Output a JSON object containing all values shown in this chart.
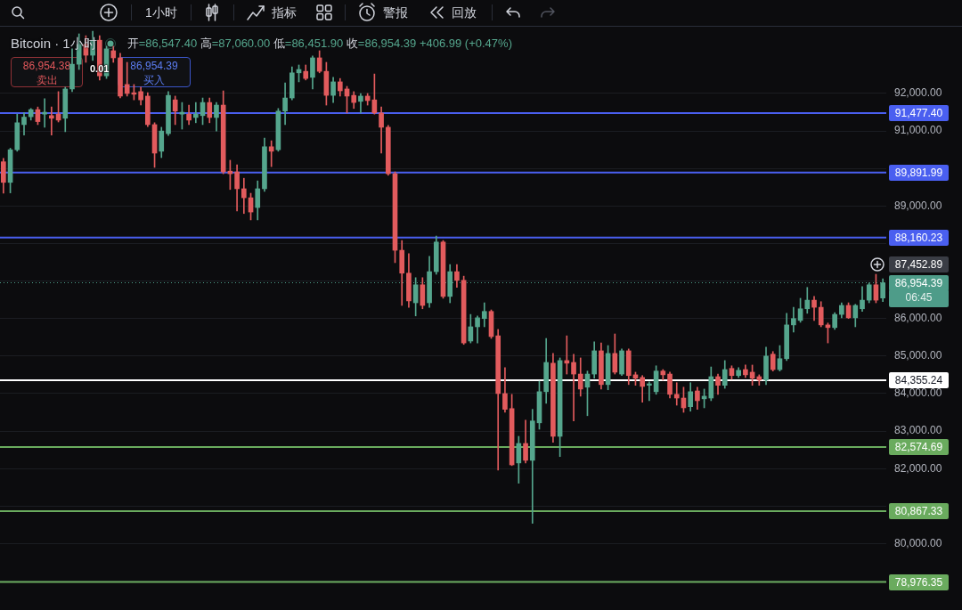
{
  "chart_data": {
    "type": "candlestick",
    "title": "Bitcoin · 1小时",
    "subtitle": "开=86,547.40 高=87,060.00 低=86,451.90 收=86,954.39 +406.99 (+0.47%)",
    "categories": [
      null,
      null,
      null,
      null,
      null,
      null,
      null,
      null,
      null,
      null,
      null,
      null,
      null,
      null,
      null,
      null,
      null,
      null,
      null,
      null,
      null,
      null,
      null,
      null,
      null,
      null,
      null,
      null,
      null,
      null,
      null,
      null,
      null,
      null,
      null,
      null,
      null,
      null,
      null,
      null,
      null,
      null,
      null,
      null,
      null,
      null,
      null,
      null,
      null,
      null,
      null,
      null,
      null,
      null,
      null,
      null,
      null,
      null,
      null,
      null,
      null,
      null,
      null,
      null,
      null,
      null,
      null,
      null,
      null,
      null,
      null,
      null,
      null,
      null,
      null,
      null,
      null,
      null,
      null,
      null,
      null,
      null,
      null,
      null,
      null,
      null,
      null,
      null,
      null,
      null,
      null,
      null,
      null,
      null,
      null,
      null,
      null,
      null,
      null,
      null,
      null,
      null,
      null,
      null,
      null,
      null,
      null,
      null,
      null,
      null,
      null,
      null,
      null,
      null,
      null,
      null,
      null,
      null,
      null,
      null,
      null,
      null,
      null,
      null,
      null,
      null,
      null,
      null,
      null
    ],
    "ohlc": [
      [
        90180,
        90270,
        89340,
        89630
      ],
      [
        89630,
        90540,
        89350,
        90500
      ],
      [
        90500,
        91450,
        90460,
        91220
      ],
      [
        91170,
        91490,
        90890,
        91370
      ],
      [
        91380,
        91600,
        91290,
        91570
      ],
      [
        91570,
        91640,
        91170,
        91250
      ],
      [
        91450,
        91860,
        91100,
        91500
      ],
      [
        91410,
        91640,
        90890,
        91340
      ],
      [
        91450,
        92050,
        91240,
        91290
      ],
      [
        91340,
        92170,
        90980,
        92120
      ],
      [
        92120,
        93190,
        92050,
        92780
      ],
      [
        92780,
        93590,
        92640,
        93310
      ],
      [
        93310,
        93540,
        92830,
        93020
      ],
      [
        93020,
        93660,
        92880,
        93420
      ],
      [
        93420,
        93540,
        92360,
        92470
      ],
      [
        92470,
        93260,
        92400,
        93190
      ],
      [
        93140,
        93260,
        92830,
        92950
      ],
      [
        92950,
        93070,
        91880,
        91930
      ],
      [
        92240,
        92830,
        91930,
        92000
      ],
      [
        92020,
        92240,
        91830,
        91980
      ],
      [
        92050,
        92170,
        91690,
        91830
      ],
      [
        91930,
        92020,
        91120,
        91170
      ],
      [
        91170,
        91220,
        90030,
        90410
      ],
      [
        90460,
        91100,
        90290,
        91000
      ],
      [
        90930,
        92050,
        90880,
        91950
      ],
      [
        91830,
        91930,
        91170,
        91530
      ],
      [
        91450,
        91760,
        91050,
        91500
      ],
      [
        91450,
        91690,
        91170,
        91290
      ],
      [
        91360,
        91760,
        91220,
        91450
      ],
      [
        91410,
        91880,
        91170,
        91760
      ],
      [
        91760,
        91880,
        91220,
        91360
      ],
      [
        91360,
        91760,
        91000,
        91690
      ],
      [
        91690,
        92070,
        89860,
        89910
      ],
      [
        89930,
        90220,
        89440,
        89860
      ],
      [
        89910,
        90100,
        88870,
        89460
      ],
      [
        89460,
        89740,
        88800,
        89220
      ],
      [
        89220,
        89340,
        88630,
        88840
      ],
      [
        88960,
        89670,
        88630,
        89460
      ],
      [
        89460,
        90810,
        89390,
        90580
      ],
      [
        90580,
        90740,
        90050,
        90460
      ],
      [
        90500,
        91600,
        90460,
        91530
      ],
      [
        91530,
        92280,
        91170,
        91880
      ],
      [
        91880,
        92710,
        91830,
        92550
      ],
      [
        92550,
        92760,
        92310,
        92640
      ],
      [
        92590,
        92760,
        92360,
        92400
      ],
      [
        92430,
        93000,
        92120,
        92950
      ],
      [
        92950,
        93140,
        92550,
        92590
      ],
      [
        92590,
        92830,
        91690,
        91950
      ],
      [
        91950,
        92430,
        91760,
        92310
      ],
      [
        92310,
        92400,
        91930,
        92070
      ],
      [
        92120,
        92190,
        91480,
        91930
      ],
      [
        91950,
        92050,
        91600,
        91760
      ],
      [
        91790,
        92000,
        91480,
        91930
      ],
      [
        91930,
        92000,
        91690,
        91810
      ],
      [
        91830,
        92520,
        91450,
        91480
      ],
      [
        91480,
        91640,
        90410,
        91100
      ],
      [
        91100,
        91150,
        89820,
        89860
      ],
      [
        89860,
        89910,
        87490,
        87820
      ],
      [
        87820,
        88080,
        86350,
        87210
      ],
      [
        87210,
        87730,
        86300,
        86470
      ],
      [
        86420,
        87090,
        86070,
        86900
      ],
      [
        86900,
        87090,
        86260,
        86350
      ],
      [
        86420,
        87660,
        86300,
        87250
      ],
      [
        87250,
        88200,
        87180,
        88040
      ],
      [
        88040,
        88080,
        86540,
        86590
      ],
      [
        86590,
        87440,
        86420,
        87250
      ],
      [
        87250,
        87440,
        86830,
        87020
      ],
      [
        87020,
        87130,
        85310,
        85350
      ],
      [
        85400,
        86110,
        85350,
        85780
      ],
      [
        85780,
        86070,
        85350,
        86020
      ],
      [
        86000,
        86420,
        85780,
        86190
      ],
      [
        86190,
        86230,
        85470,
        85520
      ],
      [
        85540,
        85710,
        81960,
        84000
      ],
      [
        84000,
        84690,
        83500,
        83580
      ],
      [
        83600,
        83980,
        82080,
        82100
      ],
      [
        82150,
        82860,
        81610,
        82670
      ],
      [
        82670,
        83290,
        82150,
        82220
      ],
      [
        82220,
        83580,
        80540,
        83270
      ],
      [
        83220,
        84330,
        83050,
        84050
      ],
      [
        84050,
        85470,
        83740,
        84830
      ],
      [
        84810,
        85070,
        82700,
        82860
      ],
      [
        82860,
        84950,
        82320,
        84880
      ],
      [
        84880,
        85540,
        84520,
        84810
      ],
      [
        84830,
        85050,
        83270,
        84520
      ],
      [
        84520,
        84950,
        83930,
        84120
      ],
      [
        84170,
        84600,
        83410,
        84520
      ],
      [
        84520,
        85380,
        84410,
        85140
      ],
      [
        85140,
        85350,
        84120,
        84240
      ],
      [
        84240,
        85280,
        84100,
        85070
      ],
      [
        85070,
        85590,
        84520,
        84570
      ],
      [
        84520,
        85190,
        84480,
        85140
      ],
      [
        85140,
        85190,
        84240,
        84480
      ],
      [
        84500,
        84570,
        84220,
        84410
      ],
      [
        84430,
        84480,
        83770,
        84190
      ],
      [
        84220,
        84310,
        83810,
        84260
      ],
      [
        84050,
        84740,
        83980,
        84600
      ],
      [
        84600,
        84640,
        84360,
        84500
      ],
      [
        84520,
        84570,
        83880,
        83980
      ],
      [
        83980,
        84290,
        83690,
        83880
      ],
      [
        83880,
        84170,
        83500,
        83620
      ],
      [
        83650,
        84290,
        83530,
        84050
      ],
      [
        84070,
        84170,
        83580,
        83810
      ],
      [
        83860,
        84120,
        83620,
        83930
      ],
      [
        83880,
        84710,
        83810,
        84450
      ],
      [
        84450,
        84520,
        83980,
        84220
      ],
      [
        84220,
        84880,
        84140,
        84640
      ],
      [
        84670,
        84740,
        84380,
        84480
      ],
      [
        84480,
        84690,
        84430,
        84620
      ],
      [
        84640,
        84760,
        84430,
        84500
      ],
      [
        84570,
        84760,
        84220,
        84410
      ],
      [
        84450,
        84500,
        84220,
        84360
      ],
      [
        84360,
        85240,
        84240,
        85000
      ],
      [
        85050,
        85120,
        84600,
        84640
      ],
      [
        84640,
        85280,
        84600,
        84930
      ],
      [
        84930,
        86140,
        84880,
        85830
      ],
      [
        85830,
        86300,
        85640,
        86000
      ],
      [
        85950,
        86540,
        85900,
        86260
      ],
      [
        86260,
        86830,
        86140,
        86490
      ],
      [
        86490,
        86590,
        85950,
        86300
      ],
      [
        86300,
        86450,
        85780,
        85830
      ],
      [
        85830,
        85880,
        85350,
        85760
      ],
      [
        85760,
        86160,
        85710,
        86110
      ],
      [
        86110,
        86420,
        86020,
        86350
      ],
      [
        86350,
        86420,
        86000,
        86020
      ],
      [
        86020,
        86380,
        85780,
        86350
      ],
      [
        86260,
        86850,
        86190,
        86490
      ],
      [
        86490,
        86950,
        86420,
        86900
      ],
      [
        86900,
        87180,
        86420,
        86490
      ],
      [
        86547.4,
        87060.0,
        86451.9,
        86954.39
      ]
    ],
    "colors": [
      "#e25b5d",
      "#55a68d",
      "#55a68d",
      "#55a68d",
      "#55a68d",
      "#e25b5d",
      "#55a68d",
      "#e25b5d",
      "#e25b5d",
      "#55a68d",
      "#55a68d",
      "#55a68d",
      "#e25b5d",
      "#55a68d",
      "#e25b5d",
      "#55a68d",
      "#e25b5d",
      "#e25b5d",
      "#e25b5d",
      "#e25b5d",
      "#e25b5d",
      "#e25b5d",
      "#e25b5d",
      "#55a68d",
      "#55a68d",
      "#e25b5d",
      "#55a68d",
      "#e25b5d",
      "#55a68d",
      "#55a68d",
      "#e25b5d",
      "#55a68d",
      "#e25b5d",
      "#e25b5d",
      "#e25b5d",
      "#e25b5d",
      "#e25b5d",
      "#55a68d",
      "#55a68d",
      "#e25b5d",
      "#55a68d",
      "#55a68d",
      "#55a68d",
      "#55a68d",
      "#e25b5d",
      "#55a68d",
      "#e25b5d",
      "#e25b5d",
      "#55a68d",
      "#e25b5d",
      "#e25b5d",
      "#e25b5d",
      "#55a68d",
      "#e25b5d",
      "#e25b5d",
      "#e25b5d",
      "#e25b5d",
      "#e25b5d",
      "#e25b5d",
      "#e25b5d",
      "#55a68d",
      "#e25b5d",
      "#55a68d",
      "#55a68d",
      "#e25b5d",
      "#55a68d",
      "#e25b5d",
      "#e25b5d",
      "#55a68d",
      "#55a68d",
      "#55a68d",
      "#e25b5d",
      "#e25b5d",
      "#e25b5d",
      "#e25b5d",
      "#55a68d",
      "#e25b5d",
      "#55a68d",
      "#55a68d",
      "#55a68d",
      "#e25b5d",
      "#55a68d",
      "#e25b5d",
      "#e25b5d",
      "#e25b5d",
      "#55a68d",
      "#55a68d",
      "#e25b5d",
      "#55a68d",
      "#e25b5d",
      "#55a68d",
      "#e25b5d",
      "#e25b5d",
      "#e25b5d",
      "#55a68d",
      "#55a68d",
      "#e25b5d",
      "#e25b5d",
      "#e25b5d",
      "#e25b5d",
      "#55a68d",
      "#e25b5d",
      "#55a68d",
      "#55a68d",
      "#e25b5d",
      "#55a68d",
      "#e25b5d",
      "#55a68d",
      "#e25b5d",
      "#e25b5d",
      "#e25b5d",
      "#55a68d",
      "#e25b5d",
      "#55a68d",
      "#55a68d",
      "#55a68d",
      "#55a68d",
      "#55a68d",
      "#e25b5d",
      "#e25b5d",
      "#e25b5d",
      "#55a68d",
      "#55a68d",
      "#e25b5d",
      "#55a68d",
      "#55a68d",
      "#55a68d",
      "#e25b5d",
      "#55a68d"
    ],
    "ylim": [
      78230,
      93780
    ],
    "yticks": [
      {
        "value": 79000,
        "label": null
      },
      {
        "value": 80000,
        "label": "80,000.00"
      },
      {
        "value": 81000,
        "label": null
      },
      {
        "value": 82000,
        "label": "82,000.00"
      },
      {
        "value": 83000,
        "label": "83,000.00"
      },
      {
        "value": 84000,
        "label": "84,000.00"
      },
      {
        "value": 85000,
        "label": "85,000.00"
      },
      {
        "value": 86000,
        "label": "86,000.00"
      },
      {
        "value": 87000,
        "label": null
      },
      {
        "value": 88000,
        "label": null
      },
      {
        "value": 89000,
        "label": "89,000.00"
      },
      {
        "value": 90000,
        "label": null
      },
      {
        "value": 91000,
        "label": "91,000.00"
      },
      {
        "value": 92000,
        "label": "92,000.00"
      }
    ],
    "tick_labels": "y",
    "grid": "y",
    "ref_lines": [
      {
        "axis": "y",
        "value": 91477.4,
        "label": "91,477.40",
        "color": "#4a5ff0"
      },
      {
        "axis": "y",
        "value": 89891.99,
        "label": "89,891.99",
        "color": "#4a5ff0"
      },
      {
        "axis": "y",
        "value": 88160.23,
        "label": "88,160.23",
        "color": "#4a5ff0"
      },
      {
        "axis": "y",
        "value": 84355.24,
        "label": "84,355.24",
        "color": "#ffffff"
      },
      {
        "axis": "y",
        "value": 82574.69,
        "label": "82,574.69",
        "color": "#6aab5e"
      },
      {
        "axis": "y",
        "value": 80867.33,
        "label": "80,867.33",
        "color": "#6aab5e"
      },
      {
        "axis": "y",
        "value": 78976.35,
        "label": "78,976.35",
        "color": "#6aab5e"
      },
      {
        "axis": "y",
        "value": 86954.39,
        "label": "86,954.39",
        "color": "#4e9c89",
        "line_style": "dotted"
      }
    ],
    "annotations": [
      "1小时",
      "指标",
      "警报",
      "回放",
      "86,954.38",
      "卖出",
      "0.01",
      "86,954.39",
      "买入",
      "87,452.89",
      "06:45"
    ]
  }
}
